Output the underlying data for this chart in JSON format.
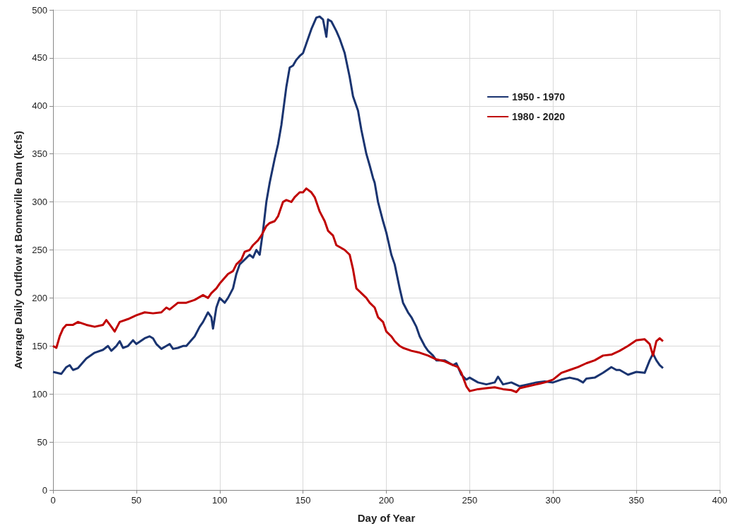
{
  "chart_data": {
    "type": "line",
    "xlabel": "Day of Year",
    "ylabel": "Average Daily Outflow at Bonneville Dam (kcfs)",
    "xlim": [
      0,
      400
    ],
    "xticks": [
      0,
      50,
      100,
      150,
      200,
      250,
      300,
      350,
      400
    ],
    "ylim": [
      0,
      500
    ],
    "yticks": [
      0,
      50,
      100,
      150,
      200,
      250,
      300,
      350,
      400,
      450,
      500
    ],
    "grid": true,
    "legend": "top right",
    "marker": "none",
    "line_style": "solid",
    "series": [
      {
        "name": "1950 - 1970",
        "color": "#1a3470",
        "x": [
          0,
          5,
          8,
          10,
          12,
          15,
          20,
          25,
          30,
          33,
          35,
          38,
          40,
          42,
          45,
          48,
          50,
          55,
          58,
          60,
          62,
          65,
          68,
          70,
          72,
          75,
          78,
          80,
          85,
          88,
          90,
          93,
          95,
          96,
          98,
          100,
          103,
          105,
          108,
          110,
          112,
          115,
          118,
          120,
          122,
          124,
          126,
          128,
          130,
          133,
          135,
          137,
          140,
          142,
          144,
          146,
          148,
          150,
          152,
          155,
          158,
          160,
          162,
          164,
          165,
          167,
          170,
          172,
          175,
          178,
          180,
          183,
          185,
          188,
          190,
          192,
          193,
          195,
          198,
          200,
          203,
          205,
          208,
          210,
          213,
          215,
          218,
          220,
          223,
          225,
          228,
          230,
          235,
          240,
          242,
          245,
          248,
          250,
          255,
          260,
          265,
          267,
          270,
          275,
          280,
          285,
          290,
          295,
          300,
          305,
          310,
          315,
          318,
          320,
          325,
          330,
          335,
          338,
          340,
          345,
          350,
          355,
          358,
          360,
          362,
          364,
          366
        ],
        "values": [
          123,
          121,
          128,
          130,
          125,
          127,
          137,
          143,
          146,
          150,
          145,
          150,
          155,
          148,
          150,
          156,
          152,
          158,
          160,
          158,
          152,
          147,
          150,
          152,
          147,
          148,
          150,
          150,
          160,
          170,
          175,
          185,
          180,
          168,
          190,
          200,
          195,
          200,
          210,
          225,
          235,
          240,
          245,
          242,
          250,
          245,
          270,
          300,
          320,
          345,
          360,
          380,
          420,
          440,
          442,
          448,
          452,
          455,
          465,
          480,
          492,
          493,
          490,
          472,
          490,
          488,
          478,
          470,
          455,
          430,
          410,
          395,
          375,
          350,
          338,
          325,
          320,
          300,
          280,
          268,
          245,
          235,
          210,
          195,
          185,
          180,
          170,
          160,
          150,
          145,
          140,
          135,
          135,
          130,
          132,
          120,
          115,
          117,
          112,
          110,
          112,
          118,
          110,
          112,
          108,
          110,
          112,
          113,
          112,
          115,
          117,
          115,
          112,
          116,
          117,
          122,
          128,
          125,
          125,
          120,
          123,
          122,
          135,
          142,
          135,
          130,
          127
        ]
      },
      {
        "name": "1980 - 2020",
        "color": "#c00000",
        "x": [
          0,
          2,
          4,
          6,
          8,
          12,
          15,
          20,
          25,
          30,
          32,
          35,
          37,
          40,
          45,
          50,
          55,
          60,
          65,
          68,
          70,
          75,
          80,
          85,
          90,
          93,
          95,
          98,
          100,
          105,
          108,
          110,
          113,
          115,
          118,
          120,
          123,
          125,
          128,
          130,
          133,
          135,
          138,
          140,
          143,
          145,
          148,
          150,
          152,
          155,
          157,
          158,
          160,
          163,
          165,
          168,
          170,
          173,
          175,
          178,
          180,
          182,
          185,
          188,
          190,
          193,
          195,
          198,
          200,
          203,
          205,
          208,
          210,
          215,
          220,
          225,
          230,
          235,
          240,
          243,
          245,
          248,
          250,
          255,
          260,
          265,
          270,
          275,
          278,
          280,
          285,
          290,
          295,
          300,
          305,
          310,
          315,
          320,
          325,
          330,
          335,
          340,
          345,
          350,
          355,
          358,
          360,
          362,
          364,
          366
        ],
        "values": [
          150,
          148,
          160,
          168,
          172,
          172,
          175,
          172,
          170,
          172,
          177,
          170,
          165,
          175,
          178,
          182,
          185,
          184,
          185,
          190,
          188,
          195,
          195,
          198,
          203,
          200,
          205,
          210,
          215,
          225,
          228,
          235,
          240,
          248,
          250,
          255,
          260,
          265,
          275,
          278,
          280,
          285,
          300,
          302,
          300,
          305,
          310,
          310,
          314,
          310,
          305,
          300,
          290,
          280,
          270,
          265,
          255,
          252,
          250,
          245,
          230,
          210,
          205,
          200,
          195,
          190,
          180,
          175,
          165,
          160,
          155,
          150,
          148,
          145,
          143,
          140,
          136,
          134,
          130,
          128,
          122,
          108,
          103,
          105,
          106,
          107,
          105,
          104,
          102,
          106,
          108,
          110,
          112,
          115,
          122,
          125,
          128,
          132,
          135,
          140,
          141,
          145,
          150,
          156,
          157,
          152,
          140,
          155,
          158,
          155
        ]
      }
    ]
  }
}
